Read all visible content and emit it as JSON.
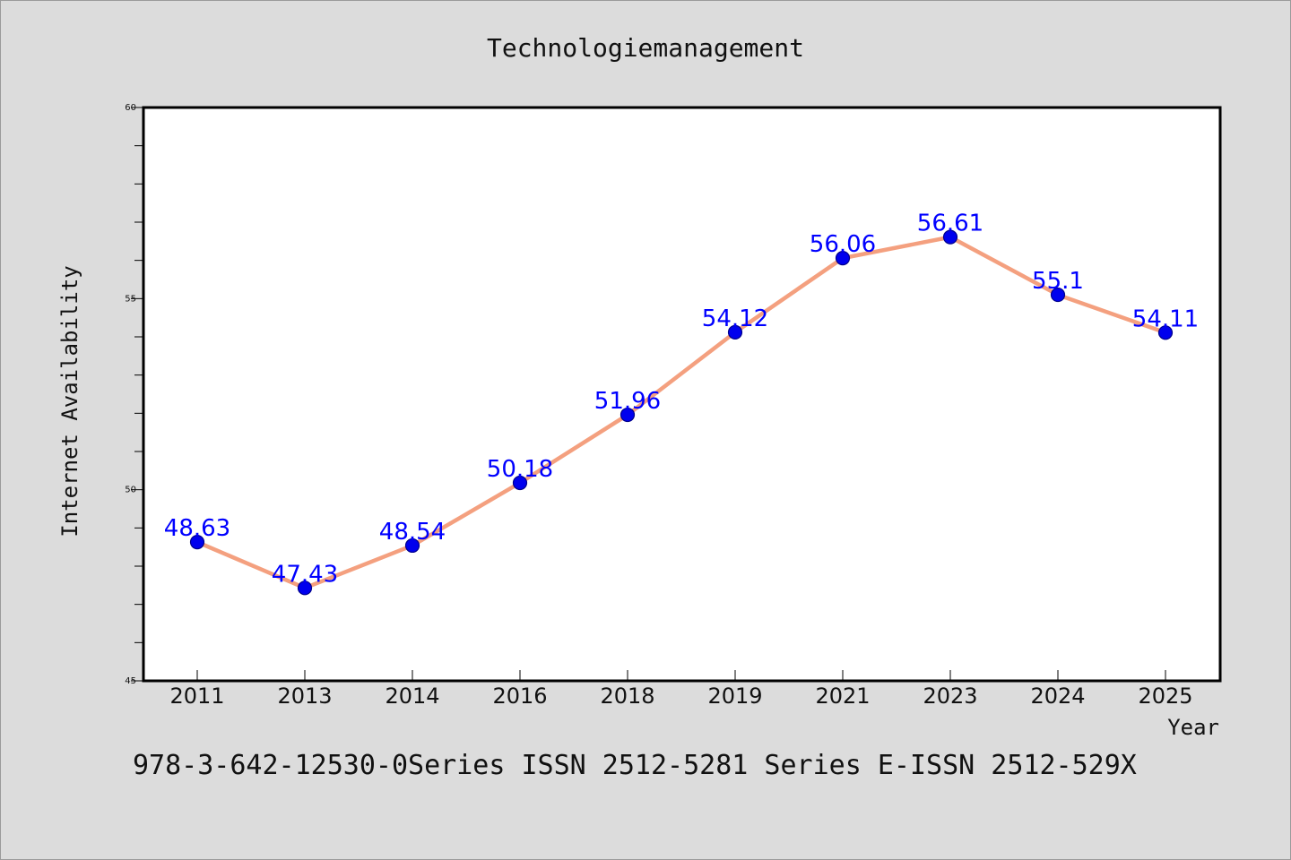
{
  "chart_data": {
    "type": "line",
    "title": "Technologiemanagement",
    "xlabel": "Year",
    "ylabel": "Internet Availability",
    "categories": [
      "2011",
      "2013",
      "2014",
      "2016",
      "2018",
      "2019",
      "2021",
      "2023",
      "2024",
      "2025"
    ],
    "series": [
      {
        "values": [
          48.63,
          47.43,
          48.54,
          50.18,
          51.96,
          54.12,
          56.06,
          56.61,
          55.1,
          54.11
        ],
        "data_labels": [
          "48.63",
          "47.43",
          "48.54",
          "50.18",
          "51.96",
          "54.12",
          "56.06",
          "56.61",
          "55.1",
          "54.11"
        ]
      }
    ],
    "ylim": [
      45,
      60
    ],
    "yticks": [
      "45",
      "50",
      "55",
      "60"
    ],
    "grid": false,
    "colors": {
      "line": "#f4a07f",
      "marker": "#0000ee",
      "marker_edge": "#00008b",
      "label": "#0000ff"
    }
  },
  "footer": {
    "text": "978-3-642-12530-0Series ISSN 2512-5281 Series E-ISSN 2512-529X"
  }
}
